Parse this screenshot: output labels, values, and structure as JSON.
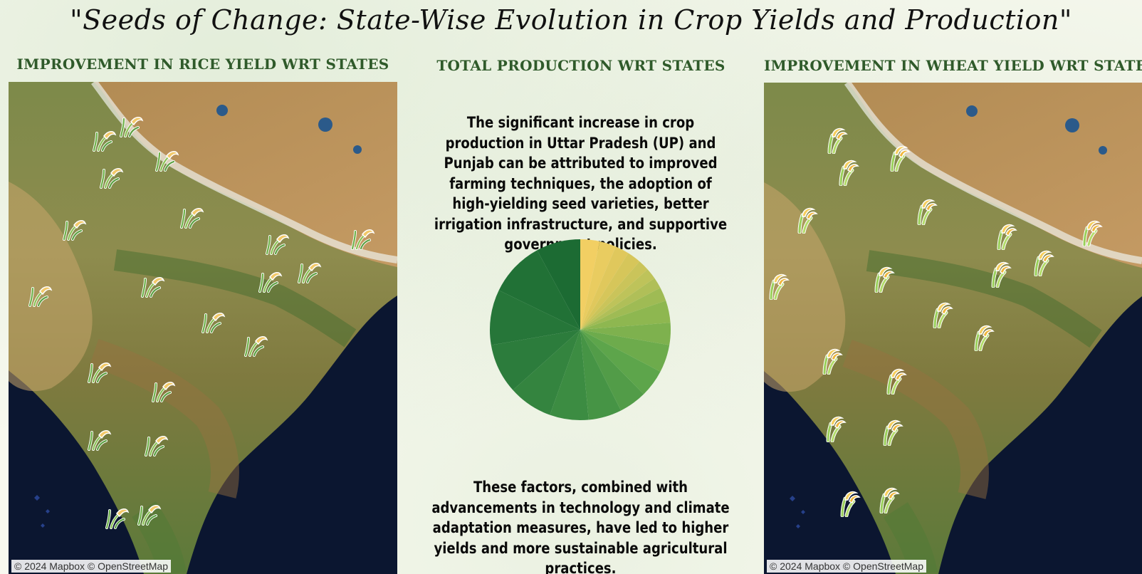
{
  "dashboard": {
    "title": "\"Seeds of Change: State-Wise Evolution in Crop Yields and Production\""
  },
  "rice_panel": {
    "title": "IMPROVEMENT IN RICE YIELD WRT STATES",
    "attribution": "© 2024 Mapbox © OpenStreetMap",
    "marker_icon": "rice-plant-icon",
    "marker_count": 21
  },
  "production_panel": {
    "title": "TOTAL PRODUCTION WRT STATES",
    "text_top": "The significant increase in crop production in Uttar Pradesh (UP) and Punjab can be attributed to improved farming techniques, the adoption of high-yielding seed varieties, better irrigation infrastructure, and supportive government policies.",
    "text_bottom": "These factors, combined with advancements in technology and climate adaptation measures, have led to higher yields and more sustainable agricultural practices."
  },
  "wheat_panel": {
    "title": "IMPROVEMENT IN WHEAT YIELD WRT STATES",
    "attribution": "© 2024 Mapbox © OpenStreetMap",
    "marker_icon": "wheat-plant-icon",
    "marker_count": 19
  },
  "chart_data": {
    "type": "pie",
    "title": "",
    "legend": "none",
    "color_scale": [
      "#f2cf63",
      "#d9c65a",
      "#b9c25a",
      "#8cb64f",
      "#5fa64b",
      "#3f8f43",
      "#2a7a3b",
      "#1c6b33"
    ],
    "values": [
      3.5,
      3.0,
      2.5,
      2.5,
      2.0,
      2.0,
      2.0,
      2.5,
      4.0,
      4.0,
      5.0,
      5.0,
      5.0,
      6.0,
      7.0,
      8.0,
      9.0,
      10.0,
      10.0,
      8.0
    ]
  }
}
